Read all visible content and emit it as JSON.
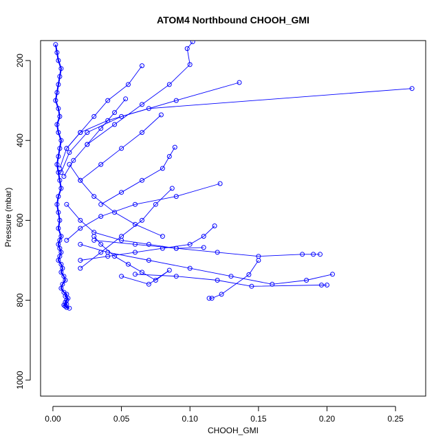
{
  "chart_data": {
    "type": "line",
    "title": "ATOM4 Northbound CHOOH_GMI",
    "xlabel": "CHOOH_GMI",
    "ylabel": "Pressure (mbar)",
    "xlim": [
      -0.009,
      0.272
    ],
    "ylim": [
      1040,
      150
    ],
    "y_reversed": true,
    "grid": false,
    "x_ticks": [
      {
        "value": 0.0,
        "label": "0.00"
      },
      {
        "value": 0.05,
        "label": "0.05"
      },
      {
        "value": 0.1,
        "label": "0.10"
      },
      {
        "value": 0.15,
        "label": "0.15"
      },
      {
        "value": 0.2,
        "label": "0.20"
      },
      {
        "value": 0.25,
        "label": "0.25"
      }
    ],
    "y_ticks": [
      {
        "value": 200,
        "label": "200"
      },
      {
        "value": 400,
        "label": "400"
      },
      {
        "value": 600,
        "label": "600"
      },
      {
        "value": 800,
        "label": "800"
      },
      {
        "value": 1000,
        "label": "1000"
      }
    ],
    "series_color": "#0000ff",
    "series": [
      {
        "name": "",
        "x": [
          0.002,
          0.003,
          0.004,
          0.006,
          0.005,
          0.004,
          0.003,
          0.002,
          0.004,
          0.005,
          0.003,
          0.004,
          0.006,
          0.005,
          0.004,
          0.003,
          0.004,
          0.005,
          0.006,
          0.004,
          0.003,
          0.004,
          0.005,
          0.004,
          0.006,
          0.005,
          0.004,
          0.005,
          0.006,
          0.005,
          0.004,
          0.006,
          0.007,
          0.006,
          0.008,
          0.009,
          0.007,
          0.006,
          0.008,
          0.01,
          0.009,
          0.011,
          0.01,
          0.009,
          0.01,
          0.008,
          0.009,
          0.01,
          0.012
        ],
        "y": [
          160,
          180,
          200,
          220,
          240,
          260,
          280,
          300,
          320,
          340,
          360,
          380,
          400,
          420,
          440,
          460,
          480,
          500,
          520,
          540,
          560,
          580,
          600,
          620,
          640,
          650,
          660,
          670,
          680,
          690,
          700,
          710,
          720,
          730,
          740,
          750,
          760,
          770,
          780,
          785,
          790,
          795,
          800,
          805,
          810,
          812,
          815,
          818,
          820
        ]
      },
      {
        "name": "",
        "x": [
          0.262,
          0.07,
          0.04,
          0.02,
          0.01,
          0.005
        ],
        "y": [
          270,
          320,
          350,
          380,
          420,
          470
        ]
      },
      {
        "name": "",
        "x": [
          0.136,
          0.09,
          0.05,
          0.025,
          0.012,
          0.006
        ],
        "y": [
          255,
          300,
          340,
          380,
          430,
          480
        ]
      },
      {
        "name": "",
        "x": [
          0.122,
          0.09,
          0.06,
          0.035,
          0.02,
          0.01
        ],
        "y": [
          508,
          540,
          560,
          590,
          620,
          650
        ]
      },
      {
        "name": "",
        "x": [
          0.204,
          0.185,
          0.16,
          0.13,
          0.1,
          0.07,
          0.04,
          0.02
        ],
        "y": [
          735,
          750,
          760,
          740,
          720,
          700,
          680,
          660
        ]
      },
      {
        "name": "",
        "x": [
          0.195,
          0.19,
          0.182,
          0.15,
          0.12,
          0.09,
          0.06,
          0.03
        ],
        "y": [
          685,
          685,
          685,
          690,
          680,
          670,
          660,
          650
        ]
      },
      {
        "name": "",
        "x": [
          0.2,
          0.196,
          0.145,
          0.12,
          0.09,
          0.06
        ],
        "y": [
          762,
          762,
          765,
          750,
          740,
          735
        ]
      },
      {
        "name": "",
        "x": [
          0.114,
          0.116,
          0.123,
          0.143,
          0.15
        ],
        "y": [
          795,
          795,
          785,
          736,
          700
        ]
      },
      {
        "name": "",
        "x": [
          0.118,
          0.11,
          0.1,
          0.08,
          0.06,
          0.04,
          0.02
        ],
        "y": [
          614,
          640,
          660,
          670,
          680,
          690,
          700
        ]
      },
      {
        "name": "",
        "x": [
          0.089,
          0.085,
          0.08,
          0.065,
          0.05,
          0.035
        ],
        "y": [
          417,
          440,
          470,
          500,
          530,
          560
        ]
      },
      {
        "name": "",
        "x": [
          0.087,
          0.075,
          0.065,
          0.05,
          0.035,
          0.02
        ],
        "y": [
          520,
          560,
          600,
          640,
          680,
          720
        ]
      },
      {
        "name": "",
        "x": [
          0.102,
          0.098,
          0.1,
          0.085,
          0.065,
          0.045,
          0.025
        ],
        "y": [
          153,
          170,
          210,
          260,
          310,
          360,
          410
        ]
      },
      {
        "name": "",
        "x": [
          0.065,
          0.055,
          0.04,
          0.03,
          0.02,
          0.01
        ],
        "y": [
          213,
          260,
          300,
          340,
          380,
          420
        ]
      },
      {
        "name": "",
        "x": [
          0.079,
          0.065,
          0.05,
          0.035,
          0.02
        ],
        "y": [
          336,
          380,
          420,
          460,
          500
        ]
      },
      {
        "name": "",
        "x": [
          0.053,
          0.045,
          0.035,
          0.025,
          0.015,
          0.008
        ],
        "y": [
          296,
          330,
          370,
          410,
          450,
          490
        ]
      },
      {
        "name": "",
        "x": [
          0.03,
          0.035,
          0.045,
          0.055,
          0.065,
          0.075,
          0.085,
          0.07,
          0.05
        ],
        "y": [
          640,
          660,
          690,
          710,
          730,
          750,
          725,
          760,
          740
        ]
      },
      {
        "name": "",
        "x": [
          0.01,
          0.02,
          0.03,
          0.05,
          0.07,
          0.09,
          0.11
        ],
        "y": [
          560,
          600,
          630,
          650,
          660,
          670,
          668
        ]
      },
      {
        "name": "",
        "x": [
          0.012,
          0.02,
          0.03,
          0.045,
          0.06,
          0.08
        ],
        "y": [
          460,
          500,
          540,
          580,
          610,
          640
        ]
      }
    ]
  }
}
